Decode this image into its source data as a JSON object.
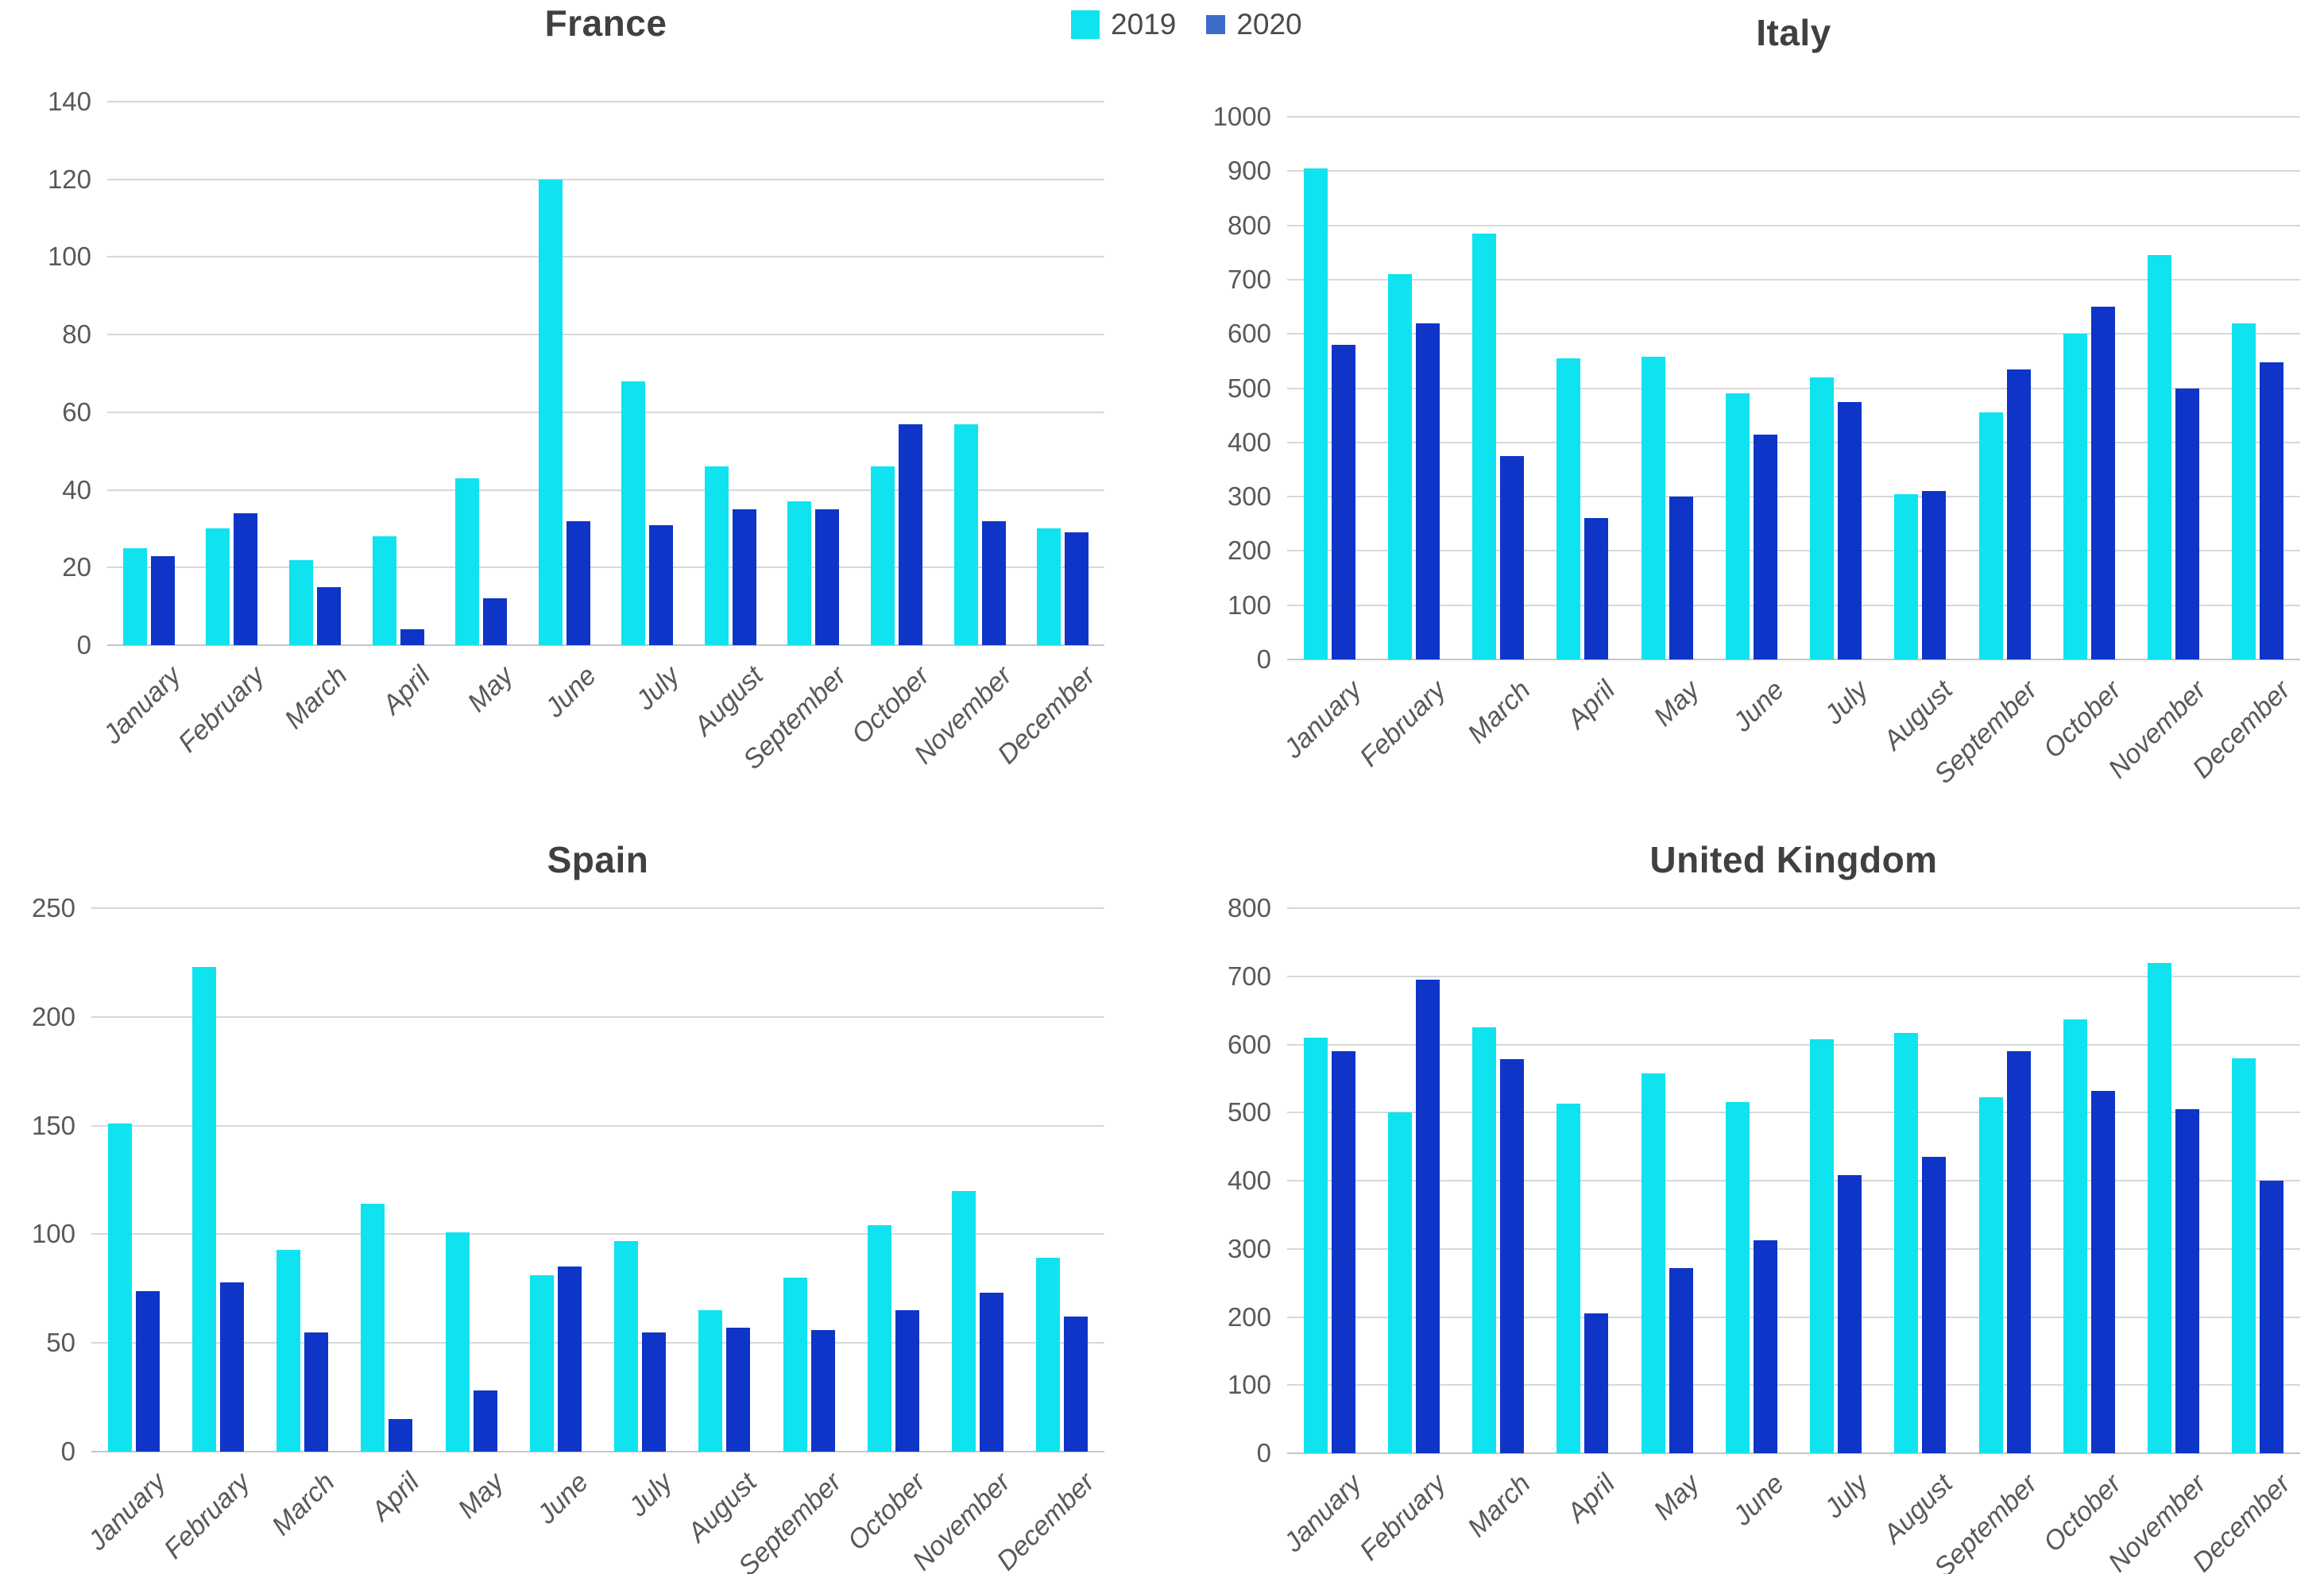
{
  "legend": {
    "items": [
      {
        "label": "2019",
        "color": "#0fe3f0"
      },
      {
        "label": "2020",
        "color": "#3f6cc9"
      }
    ],
    "position": "top-center"
  },
  "colors": {
    "series_2019_bar": "#0fe3f0",
    "series_2020_bar": "#0e35c8",
    "gridline": "#d8d8d8",
    "tick_text": "#595959",
    "title_text": "#404040"
  },
  "chart_data": [
    {
      "type": "bar",
      "title": "France",
      "categories": [
        "January",
        "February",
        "March",
        "April",
        "May",
        "June",
        "July",
        "August",
        "September",
        "October",
        "November",
        "December"
      ],
      "series": [
        {
          "name": "2019",
          "values": [
            25,
            30,
            22,
            28,
            43,
            120,
            68,
            46,
            37,
            46,
            57,
            30
          ]
        },
        {
          "name": "2020",
          "values": [
            23,
            34,
            15,
            4,
            12,
            32,
            31,
            35,
            35,
            57,
            32,
            29
          ]
        }
      ],
      "xlabel": "",
      "ylabel": "",
      "ylim": [
        0,
        140
      ],
      "ystep": 20,
      "grid": true,
      "legend_position": "top-center-shared"
    },
    {
      "type": "bar",
      "title": "Italy",
      "categories": [
        "January",
        "February",
        "March",
        "April",
        "May",
        "June",
        "July",
        "August",
        "September",
        "October",
        "November",
        "December"
      ],
      "series": [
        {
          "name": "2019",
          "values": [
            905,
            710,
            785,
            555,
            558,
            490,
            520,
            305,
            455,
            600,
            745,
            620
          ]
        },
        {
          "name": "2020",
          "values": [
            580,
            620,
            375,
            260,
            300,
            415,
            475,
            310,
            535,
            650,
            500,
            548
          ]
        }
      ],
      "xlabel": "",
      "ylabel": "",
      "ylim": [
        0,
        1000
      ],
      "ystep": 100,
      "grid": true,
      "legend_position": "top-center-shared"
    },
    {
      "type": "bar",
      "title": "Spain",
      "categories": [
        "January",
        "February",
        "March",
        "April",
        "May",
        "June",
        "July",
        "August",
        "September",
        "October",
        "November",
        "December"
      ],
      "series": [
        {
          "name": "2019",
          "values": [
            151,
            223,
            93,
            114,
            101,
            81,
            97,
            65,
            80,
            104,
            120,
            89
          ]
        },
        {
          "name": "2020",
          "values": [
            74,
            78,
            55,
            15,
            28,
            85,
            55,
            57,
            56,
            65,
            73,
            62
          ]
        }
      ],
      "xlabel": "",
      "ylabel": "",
      "ylim": [
        0,
        250
      ],
      "ystep": 50,
      "grid": true,
      "legend_position": "top-center-shared"
    },
    {
      "type": "bar",
      "title": "United Kingdom",
      "categories": [
        "January",
        "February",
        "March",
        "April",
        "May",
        "June",
        "July",
        "August",
        "September",
        "October",
        "November",
        "December"
      ],
      "series": [
        {
          "name": "2019",
          "values": [
            610,
            500,
            625,
            513,
            557,
            516,
            607,
            617,
            523,
            637,
            720,
            580
          ]
        },
        {
          "name": "2020",
          "values": [
            590,
            695,
            578,
            205,
            272,
            312,
            408,
            435,
            590,
            532,
            505,
            400
          ]
        }
      ],
      "xlabel": "",
      "ylabel": "",
      "ylim": [
        0,
        800
      ],
      "ystep": 100,
      "grid": true,
      "legend_position": "top-center-shared"
    }
  ]
}
